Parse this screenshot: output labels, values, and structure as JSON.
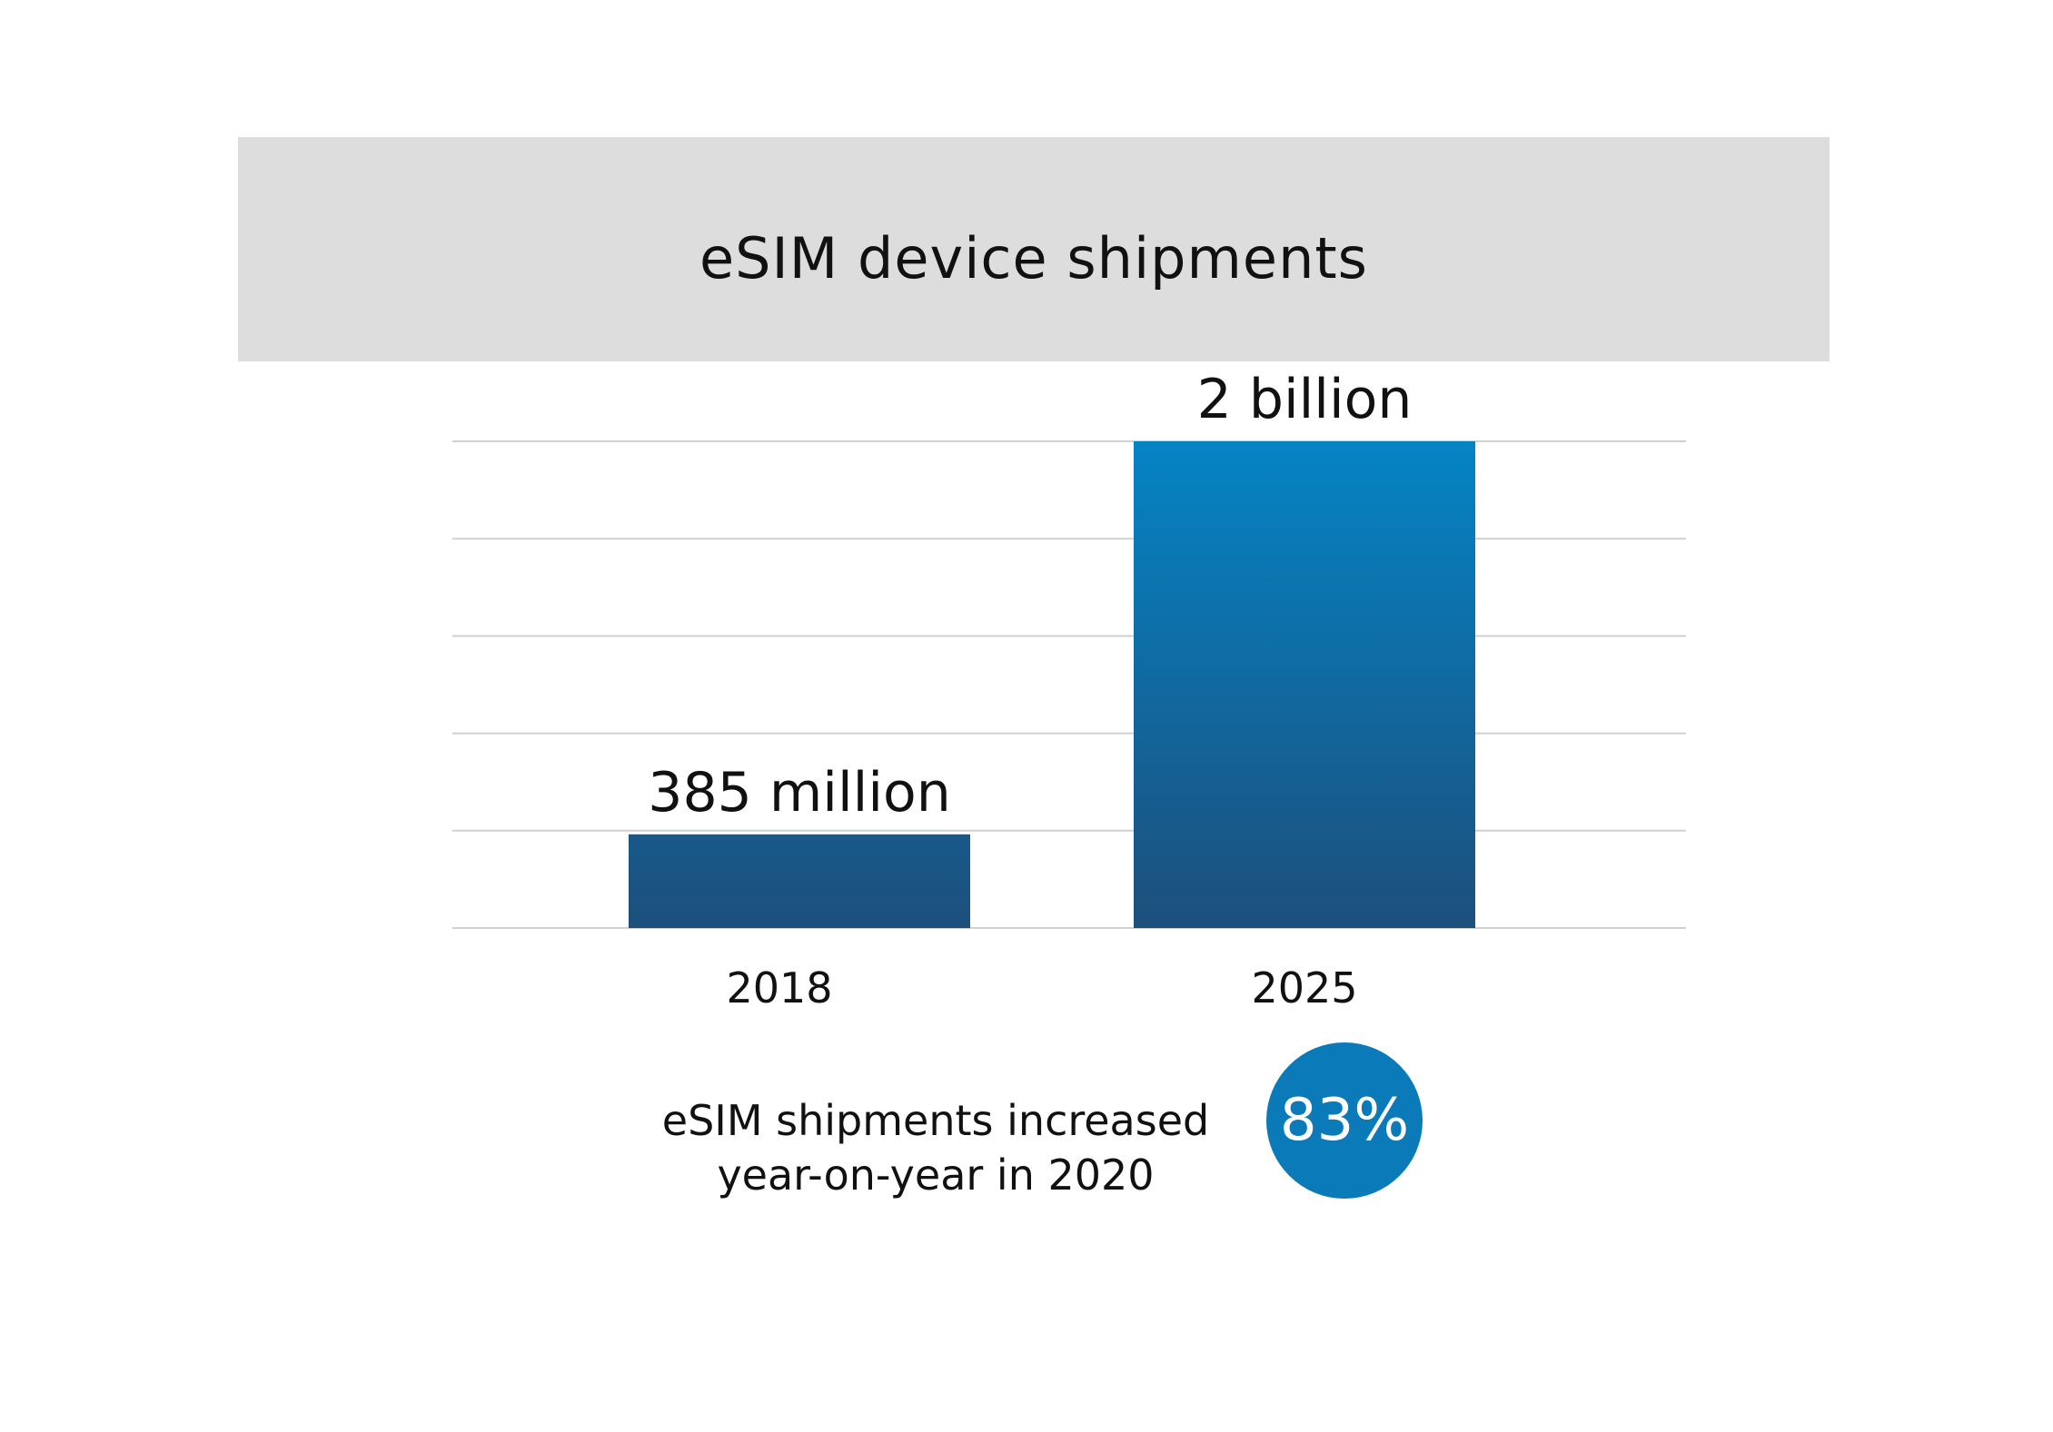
{
  "chart_data": {
    "type": "bar",
    "title": "eSIM device shipments",
    "categories": [
      "2018",
      "2025"
    ],
    "values": [
      385000000,
      2000000000
    ],
    "data_labels": [
      "385 million",
      "2 billion"
    ],
    "ylim": [
      0,
      2000000000
    ],
    "grid": true,
    "gridline_count": 6,
    "colors": {
      "bar_top": "#0584c4",
      "bar_bottom": "#1c4f7c",
      "grid": "#d0d0d0"
    }
  },
  "callout": {
    "text_line1": "eSIM shipments increased",
    "text_line2": "year-on-year in 2020",
    "badge_value": "83%",
    "badge_color": "#0a7ab9"
  }
}
